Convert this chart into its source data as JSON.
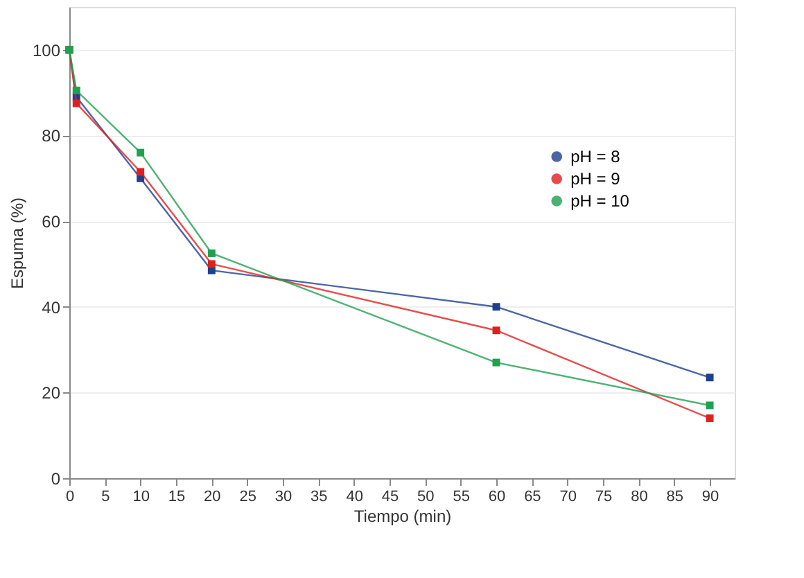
{
  "chart_data": {
    "type": "line",
    "xlabel": "Tiempo (min)",
    "ylabel": "Espuma (%)",
    "x": [
      0,
      1,
      10,
      20,
      60,
      90
    ],
    "series": [
      {
        "name": "pH = 8",
        "color": "#1f3f8f",
        "values": [
          100,
          89,
          70,
          48.5,
          40,
          23.5
        ]
      },
      {
        "name": "pH = 9",
        "color": "#e02020",
        "values": [
          100,
          87.5,
          71.5,
          50,
          34.5,
          14
        ]
      },
      {
        "name": "pH = 10",
        "color": "#20a050",
        "values": [
          100,
          90.5,
          76,
          52.5,
          27,
          17
        ]
      }
    ],
    "xlim": [
      0,
      93.5
    ],
    "xticks": [
      0,
      5,
      10,
      15,
      20,
      25,
      30,
      35,
      40,
      45,
      50,
      55,
      60,
      65,
      70,
      75,
      80,
      85,
      90
    ],
    "ylim": [
      0,
      110
    ],
    "yticks": [
      0,
      20,
      40,
      60,
      80,
      100
    ],
    "grid": "y",
    "legend": "right",
    "marker": "square",
    "line_style": "solid"
  }
}
